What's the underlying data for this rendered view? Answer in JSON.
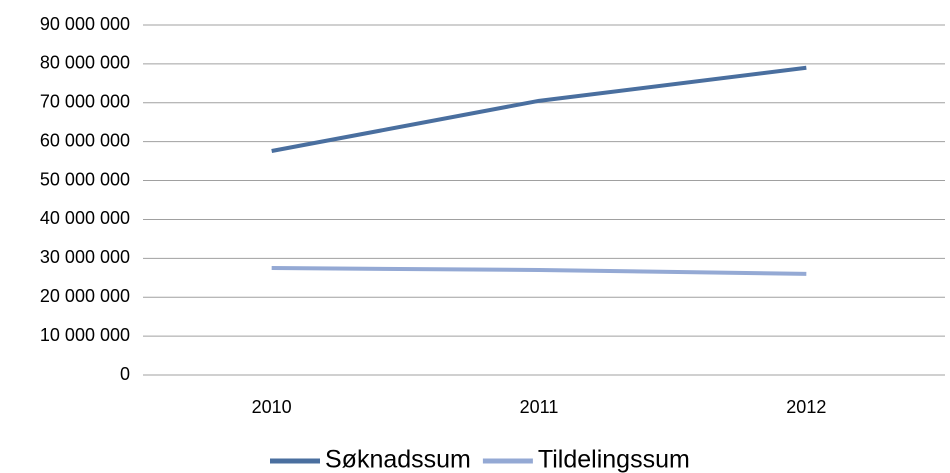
{
  "chart_data": {
    "type": "line",
    "categories": [
      "2010",
      "2011",
      "2012"
    ],
    "series": [
      {
        "name": "Søknadssum",
        "color": "#4a6f9f",
        "values": [
          57600000,
          70500000,
          79000000
        ]
      },
      {
        "name": "Tildelingssum",
        "color": "#94a9d4",
        "values": [
          27500000,
          27000000,
          26000000
        ]
      }
    ],
    "ylim": [
      0,
      90000000
    ],
    "yticks": [
      0,
      {
        "value": 10000000,
        "label": "10 000 000"
      },
      {
        "value": 20000000,
        "label": "20 000 000"
      },
      {
        "value": 30000000,
        "label": "30 000 000"
      },
      {
        "value": 40000000,
        "label": "40 000 000"
      },
      {
        "value": 50000000,
        "label": "50 000 000"
      },
      {
        "value": 60000000,
        "label": "60 000 000"
      },
      {
        "value": 70000000,
        "label": "70 000 000"
      },
      {
        "value": 80000000,
        "label": "80 000 000"
      },
      {
        "value": 90000000,
        "label": "90 000 000"
      }
    ],
    "grid": true,
    "legend": "bottom"
  }
}
